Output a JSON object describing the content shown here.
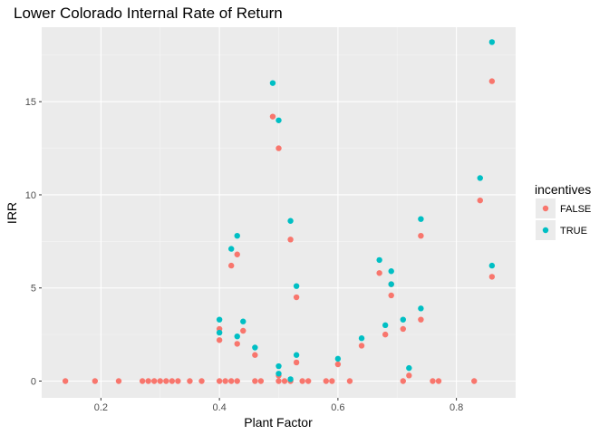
{
  "chart_data": {
    "type": "scatter",
    "title": "Lower Colorado Internal Rate of Return",
    "xlabel": "Plant Factor",
    "ylabel": "IRR",
    "xlim": [
      0.1,
      0.9
    ],
    "ylim": [
      -0.9,
      19.0
    ],
    "x_ticks": [
      0.2,
      0.4,
      0.6,
      0.8
    ],
    "x_tick_labels": [
      "0.2",
      "0.4",
      "0.6",
      "0.8"
    ],
    "y_ticks": [
      0,
      5,
      10,
      15
    ],
    "y_tick_labels": [
      "0",
      "5",
      "10",
      "15"
    ],
    "grid": true,
    "legend": {
      "title": "incentives",
      "position": "right"
    },
    "series": [
      {
        "name": "FALSE",
        "color": "#F8766D",
        "points": [
          [
            0.14,
            0
          ],
          [
            0.19,
            0
          ],
          [
            0.23,
            0
          ],
          [
            0.27,
            0
          ],
          [
            0.28,
            0
          ],
          [
            0.29,
            0
          ],
          [
            0.3,
            0
          ],
          [
            0.31,
            0
          ],
          [
            0.32,
            0
          ],
          [
            0.33,
            0
          ],
          [
            0.35,
            0
          ],
          [
            0.37,
            0
          ],
          [
            0.4,
            0
          ],
          [
            0.41,
            0
          ],
          [
            0.42,
            0
          ],
          [
            0.43,
            0
          ],
          [
            0.46,
            0
          ],
          [
            0.47,
            0
          ],
          [
            0.5,
            0
          ],
          [
            0.51,
            0
          ],
          [
            0.52,
            0
          ],
          [
            0.54,
            0
          ],
          [
            0.55,
            0
          ],
          [
            0.58,
            0
          ],
          [
            0.59,
            0
          ],
          [
            0.62,
            0
          ],
          [
            0.71,
            0
          ],
          [
            0.76,
            0
          ],
          [
            0.77,
            0
          ],
          [
            0.83,
            0
          ],
          [
            0.4,
            2.2
          ],
          [
            0.4,
            2.8
          ],
          [
            0.42,
            6.2
          ],
          [
            0.43,
            6.8
          ],
          [
            0.43,
            2.0
          ],
          [
            0.44,
            2.7
          ],
          [
            0.46,
            1.4
          ],
          [
            0.49,
            14.2
          ],
          [
            0.5,
            12.5
          ],
          [
            0.5,
            0.3
          ],
          [
            0.52,
            7.6
          ],
          [
            0.53,
            4.5
          ],
          [
            0.53,
            1.0
          ],
          [
            0.6,
            0.9
          ],
          [
            0.64,
            1.9
          ],
          [
            0.67,
            5.8
          ],
          [
            0.68,
            2.5
          ],
          [
            0.69,
            5.2
          ],
          [
            0.69,
            4.6
          ],
          [
            0.71,
            2.8
          ],
          [
            0.72,
            0.3
          ],
          [
            0.74,
            7.8
          ],
          [
            0.74,
            3.3
          ],
          [
            0.84,
            9.7
          ],
          [
            0.86,
            16.1
          ],
          [
            0.86,
            5.6
          ]
        ]
      },
      {
        "name": "TRUE",
        "color": "#00BFC4",
        "points": [
          [
            0.4,
            3.3
          ],
          [
            0.4,
            2.6
          ],
          [
            0.42,
            7.1
          ],
          [
            0.43,
            7.8
          ],
          [
            0.43,
            2.4
          ],
          [
            0.44,
            3.2
          ],
          [
            0.46,
            1.8
          ],
          [
            0.49,
            16.0
          ],
          [
            0.5,
            14.0
          ],
          [
            0.5,
            0.8
          ],
          [
            0.5,
            0.4
          ],
          [
            0.52,
            8.6
          ],
          [
            0.52,
            0.1
          ],
          [
            0.53,
            5.1
          ],
          [
            0.53,
            1.4
          ],
          [
            0.6,
            1.2
          ],
          [
            0.64,
            2.3
          ],
          [
            0.67,
            6.5
          ],
          [
            0.68,
            3.0
          ],
          [
            0.69,
            5.9
          ],
          [
            0.69,
            5.2
          ],
          [
            0.71,
            3.3
          ],
          [
            0.72,
            0.7
          ],
          [
            0.74,
            8.7
          ],
          [
            0.74,
            3.9
          ],
          [
            0.84,
            10.9
          ],
          [
            0.86,
            18.2
          ],
          [
            0.86,
            6.2
          ]
        ]
      }
    ]
  }
}
